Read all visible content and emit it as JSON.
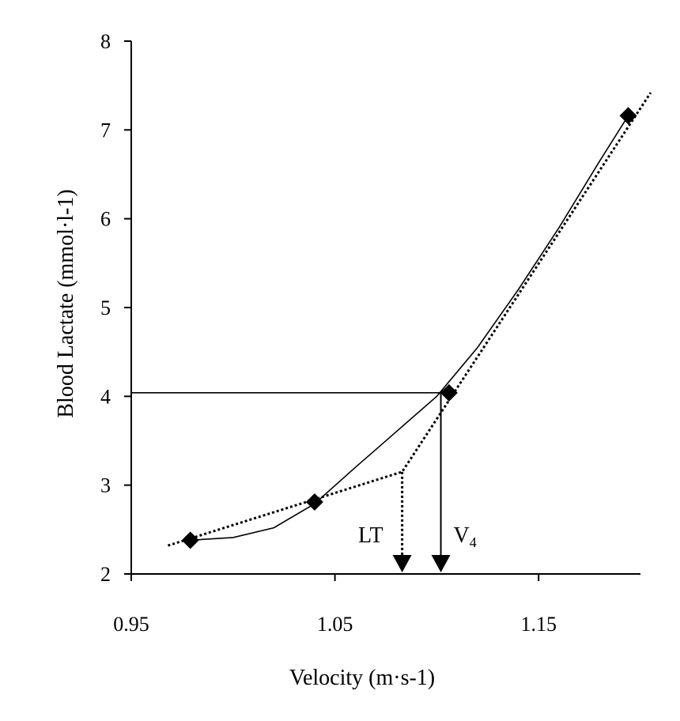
{
  "chart_data": {
    "type": "scatter",
    "xlabel": "Velocity (m·s-1)",
    "ylabel": "Blood Lactate (mmol·l-1)",
    "xlim": [
      0.95,
      1.2
    ],
    "ylim": [
      2,
      8
    ],
    "x_ticks": [
      "0.95",
      "1.05",
      "1.15"
    ],
    "x_tick_values": [
      0.95,
      1.05,
      1.15
    ],
    "y_ticks": [
      "2",
      "3",
      "4",
      "5",
      "6",
      "7",
      "8"
    ],
    "y_tick_values": [
      2,
      3,
      4,
      5,
      6,
      7,
      8
    ],
    "points": [
      {
        "x": 0.979,
        "y": 2.38
      },
      {
        "x": 1.04,
        "y": 2.81
      },
      {
        "x": 1.106,
        "y": 4.04
      },
      {
        "x": 1.194,
        "y": 7.16
      }
    ],
    "smooth_fit": [
      {
        "x": 0.979,
        "y": 2.38
      },
      {
        "x": 1.0,
        "y": 2.41
      },
      {
        "x": 1.02,
        "y": 2.52
      },
      {
        "x": 1.04,
        "y": 2.79
      },
      {
        "x": 1.06,
        "y": 3.2
      },
      {
        "x": 1.08,
        "y": 3.6
      },
      {
        "x": 1.1,
        "y": 4.0
      },
      {
        "x": 1.12,
        "y": 4.55
      },
      {
        "x": 1.14,
        "y": 5.2
      },
      {
        "x": 1.16,
        "y": 5.9
      },
      {
        "x": 1.18,
        "y": 6.65
      },
      {
        "x": 1.194,
        "y": 7.16
      }
    ],
    "segmented_fit": [
      {
        "x": 0.968,
        "y": 2.32
      },
      {
        "x": 1.083,
        "y": 3.15
      },
      {
        "x": 1.205,
        "y": 7.42
      }
    ],
    "v4_line": {
      "y": 4.04,
      "x_start": 0.95,
      "x_end": 1.102
    },
    "markers": [
      {
        "label": "LT",
        "x": 1.083,
        "y_from": 3.15,
        "style": "dotted"
      },
      {
        "label": "V",
        "subscript": "4",
        "x": 1.102,
        "y_from": 4.04,
        "style": "solid"
      }
    ],
    "grid": false,
    "legend": "none"
  }
}
